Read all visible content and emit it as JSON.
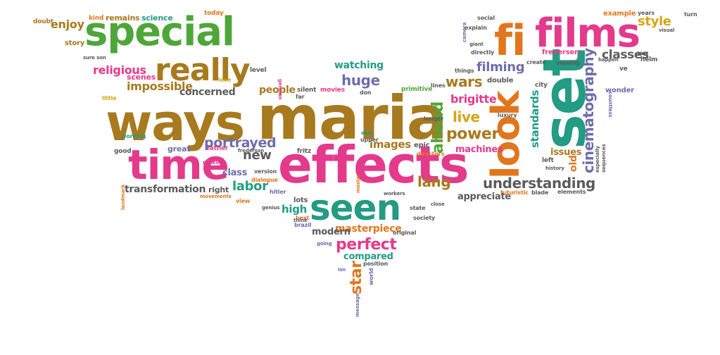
{
  "colors": {
    "green": "#4ea63a",
    "brown": "#a77a1f",
    "pink": "#e33a8b",
    "orange": "#e0771e",
    "teal": "#249b83",
    "purple": "#6e6dad",
    "gray": "#5b5b5b",
    "gold": "#d5a516"
  },
  "words": {
    "special": "special",
    "ways": "ways",
    "maria": "maria",
    "effects": "effects",
    "time": "time",
    "seen": "seen",
    "look": "look",
    "set": "set",
    "fi": "fi",
    "films": "films",
    "really": "really",
    "religious": "religious",
    "impossible": "impossible",
    "concerned": "concerned",
    "portrayed": "portrayed",
    "transformation": "transformation",
    "labor": "labor",
    "new": "new",
    "class": "class",
    "people": "people",
    "huge": "huge",
    "watching": "watching",
    "wars": "wars",
    "brigitte": "brigitte",
    "live": "live",
    "power": "power",
    "ahead": "ahead",
    "lang": "lang",
    "understanding": "understanding",
    "cinematography": "cinematography",
    "standards": "standards",
    "classes": "classes",
    "style": "style",
    "filming": "filming",
    "images": "images",
    "machines": "machines",
    "issues": "issues",
    "high": "high",
    "masterpiece": "masterpiece",
    "modern": "modern",
    "perfect": "perfect",
    "compared": "compared",
    "star": "star",
    "appreciate": "appreciate",
    "enjoy": "enjoy",
    "remains": "remains",
    "science": "science",
    "today": "today",
    "story": "story",
    "scenes": "scenes",
    "doubt": "doubt",
    "kind": "kind",
    "love": "love",
    "level": "level",
    "great": "great",
    "good": "good",
    "working": "working",
    "father": "father",
    "making": "making",
    "fritz": "fritz",
    "epic": "epic",
    "lots": "lots",
    "hitler": "hitler",
    "version": "version",
    "dialogue": "dialogue",
    "view": "view",
    "genius": "genius",
    "best": "best",
    "brazil": "brazil",
    "society": "society",
    "state": "state",
    "close": "close",
    "original": "original",
    "position": "position",
    "going": "going",
    "isn": "isn",
    "world": "world",
    "message": "message",
    "little": "little",
    "sure_son": "sure son",
    "silent": "silent",
    "movies": "movies",
    "don": "don",
    "primitive": "primitive",
    "lines": "lines",
    "far": "far",
    "think": "think",
    "able": "able",
    "upper": "upper",
    "directors": "directors",
    "longer": "longer",
    "things": "things",
    "double": "double",
    "directly": "directly",
    "giant": "giant",
    "camera": "camera",
    "explain": "explain",
    "social": "social",
    "fredersen": "fredersen",
    "frederson": "frederson",
    "create": "create",
    "viewing": "viewing",
    "example": "example",
    "years": "years",
    "turn": "turn",
    "visual": "visual",
    "saw": "saw",
    "happen": "happen",
    "helm": "helm",
    "ve": "ve",
    "wonder": "wonder",
    "countless": "countless",
    "especially": "especially",
    "sequences": "sequences",
    "history": "history",
    "elements": "elements",
    "blade": "blade",
    "futuristic": "futuristic",
    "luxury": "luxury",
    "city": "city",
    "left": "left",
    "old": "old",
    "workers": "workers",
    "master": "master",
    "right": "right",
    "movements": "movements",
    "landmark": "landmark",
    "german": "german"
  }
}
